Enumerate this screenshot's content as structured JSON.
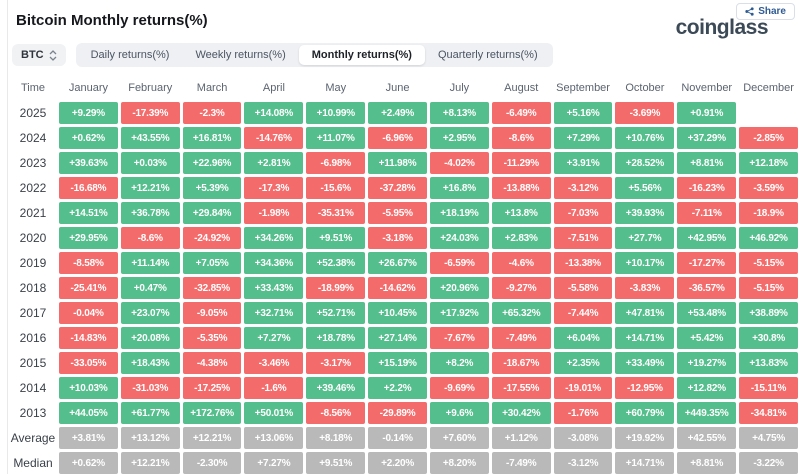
{
  "header": {
    "title": "Bitcoin Monthly returns(%)",
    "brand": "coinglass",
    "share": {
      "label": "Share"
    }
  },
  "controls": {
    "coin": {
      "value": "BTC"
    },
    "tabs": [
      {
        "label": "Daily returns(%)",
        "active": false
      },
      {
        "label": "Weekly returns(%)",
        "active": false
      },
      {
        "label": "Monthly returns(%)",
        "active": true
      },
      {
        "label": "Quarterly returns(%)",
        "active": false
      }
    ]
  },
  "colors": {
    "positive": "#54be8c",
    "negative": "#f46b6b",
    "neutral": "#b9b9b9",
    "cell_text": "#ffffff"
  },
  "table": {
    "corner_label": "Time",
    "months": [
      "January",
      "February",
      "March",
      "April",
      "May",
      "June",
      "July",
      "August",
      "September",
      "October",
      "November",
      "December"
    ],
    "rows": [
      {
        "label": "2025",
        "type": "year",
        "values": [
          "+9.29%",
          "-17.39%",
          "-2.3%",
          "+14.08%",
          "+10.99%",
          "+2.49%",
          "+8.13%",
          "-6.49%",
          "+5.16%",
          "-3.69%",
          "+0.91%",
          ""
        ]
      },
      {
        "label": "2024",
        "type": "year",
        "values": [
          "+0.62%",
          "+43.55%",
          "+16.81%",
          "-14.76%",
          "+11.07%",
          "-6.96%",
          "+2.95%",
          "-8.6%",
          "+7.29%",
          "+10.76%",
          "+37.29%",
          "-2.85%"
        ]
      },
      {
        "label": "2023",
        "type": "year",
        "values": [
          "+39.63%",
          "+0.03%",
          "+22.96%",
          "+2.81%",
          "-6.98%",
          "+11.98%",
          "-4.02%",
          "-11.29%",
          "+3.91%",
          "+28.52%",
          "+8.81%",
          "+12.18%"
        ]
      },
      {
        "label": "2022",
        "type": "year",
        "values": [
          "-16.68%",
          "+12.21%",
          "+5.39%",
          "-17.3%",
          "-15.6%",
          "-37.28%",
          "+16.8%",
          "-13.88%",
          "-3.12%",
          "+5.56%",
          "-16.23%",
          "-3.59%"
        ]
      },
      {
        "label": "2021",
        "type": "year",
        "values": [
          "+14.51%",
          "+36.78%",
          "+29.84%",
          "-1.98%",
          "-35.31%",
          "-5.95%",
          "+18.19%",
          "+13.8%",
          "-7.03%",
          "+39.93%",
          "-7.11%",
          "-18.9%"
        ]
      },
      {
        "label": "2020",
        "type": "year",
        "values": [
          "+29.95%",
          "-8.6%",
          "-24.92%",
          "+34.26%",
          "+9.51%",
          "-3.18%",
          "+24.03%",
          "+2.83%",
          "-7.51%",
          "+27.7%",
          "+42.95%",
          "+46.92%"
        ]
      },
      {
        "label": "2019",
        "type": "year",
        "values": [
          "-8.58%",
          "+11.14%",
          "+7.05%",
          "+34.36%",
          "+52.38%",
          "+26.67%",
          "-6.59%",
          "-4.6%",
          "-13.38%",
          "+10.17%",
          "-17.27%",
          "-5.15%"
        ]
      },
      {
        "label": "2018",
        "type": "year",
        "values": [
          "-25.41%",
          "+0.47%",
          "-32.85%",
          "+33.43%",
          "-18.99%",
          "-14.62%",
          "+20.96%",
          "-9.27%",
          "-5.58%",
          "-3.83%",
          "-36.57%",
          "-5.15%"
        ]
      },
      {
        "label": "2017",
        "type": "year",
        "values": [
          "-0.04%",
          "+23.07%",
          "-9.05%",
          "+32.71%",
          "+52.71%",
          "+10.45%",
          "+17.92%",
          "+65.32%",
          "-7.44%",
          "+47.81%",
          "+53.48%",
          "+38.89%"
        ]
      },
      {
        "label": "2016",
        "type": "year",
        "values": [
          "-14.83%",
          "+20.08%",
          "-5.35%",
          "+7.27%",
          "+18.78%",
          "+27.14%",
          "-7.67%",
          "-7.49%",
          "+6.04%",
          "+14.71%",
          "+5.42%",
          "+30.8%"
        ]
      },
      {
        "label": "2015",
        "type": "year",
        "values": [
          "-33.05%",
          "+18.43%",
          "-4.38%",
          "-3.46%",
          "-3.17%",
          "+15.19%",
          "+8.2%",
          "-18.67%",
          "+2.35%",
          "+33.49%",
          "+19.27%",
          "+13.83%"
        ]
      },
      {
        "label": "2014",
        "type": "year",
        "values": [
          "+10.03%",
          "-31.03%",
          "-17.25%",
          "-1.6%",
          "+39.46%",
          "+2.2%",
          "-9.69%",
          "-17.55%",
          "-19.01%",
          "-12.95%",
          "+12.82%",
          "-15.11%"
        ]
      },
      {
        "label": "2013",
        "type": "year",
        "values": [
          "+44.05%",
          "+61.77%",
          "+172.76%",
          "+50.01%",
          "-8.56%",
          "-29.89%",
          "+9.6%",
          "+30.42%",
          "-1.76%",
          "+60.79%",
          "+449.35%",
          "-34.81%"
        ]
      },
      {
        "label": "Average",
        "type": "summary",
        "values": [
          "+3.81%",
          "+13.12%",
          "+12.21%",
          "+13.06%",
          "+8.18%",
          "-0.14%",
          "+7.60%",
          "+1.12%",
          "-3.08%",
          "+19.92%",
          "+42.55%",
          "+4.75%"
        ]
      },
      {
        "label": "Median",
        "type": "summary",
        "values": [
          "+0.62%",
          "+12.21%",
          "-2.30%",
          "+7.27%",
          "+9.51%",
          "+2.20%",
          "+8.20%",
          "-7.49%",
          "-3.12%",
          "+14.71%",
          "+8.81%",
          "-3.22%"
        ]
      }
    ]
  }
}
